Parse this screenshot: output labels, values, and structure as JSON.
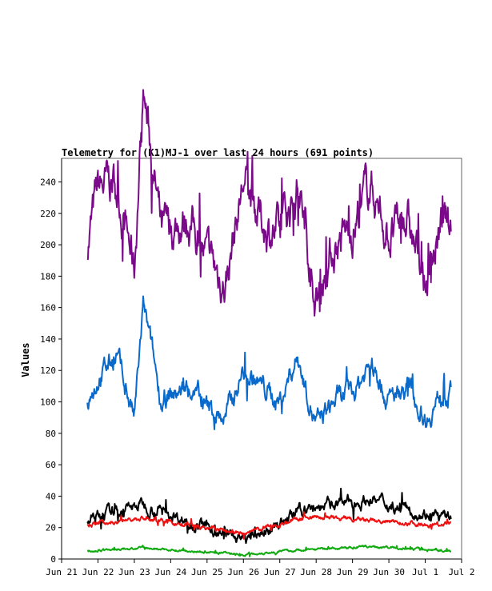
{
  "chart_data": {
    "type": "line",
    "title": "Telemetry for (K1)MJ-1 over last 24 hours (691 points)",
    "xlabel": "",
    "ylabel": "Values",
    "xlim": [
      "Jun 21",
      "Jul 2"
    ],
    "ylim": [
      0,
      255
    ],
    "x_ticks": [
      "Jun 21",
      "Jun 22",
      "Jun 23",
      "Jun 24",
      "Jun 25",
      "Jun 26",
      "Jun 27",
      "Jun 28",
      "Jun 29",
      "Jun 30",
      "Jul 1",
      "Jul 2"
    ],
    "y_ticks": [
      0,
      20,
      40,
      60,
      80,
      100,
      120,
      140,
      160,
      180,
      200,
      220,
      240
    ],
    "grid": false,
    "legend": "none",
    "series": [
      {
        "color": "#7b0a8a",
        "baseline": 205,
        "amplitude": 22,
        "noise": 18,
        "x": [
          "Jun 21 17:00",
          "Jun 22 00:00",
          "Jun 22 12:00",
          "Jun 23 00:00",
          "Jun 23 06:00",
          "Jun 23 18:00",
          "Jun 24 12:00",
          "Jun 25 00:00",
          "Jun 25 12:00",
          "Jun 26 00:00",
          "Jun 26 12:00",
          "Jun 27 00:00",
          "Jun 27 12:00",
          "Jun 28 00:00",
          "Jun 28 12:00",
          "Jun 29 00:00",
          "Jun 29 12:00",
          "Jun 30 00:00",
          "Jun 30 12:00",
          "Jul 1 00:00",
          "Jul 1 12:00",
          "Jul 1 17:00"
        ],
        "values": [
          200,
          235,
          240,
          185,
          300,
          205,
          218,
          190,
          175,
          240,
          215,
          205,
          240,
          165,
          200,
          210,
          240,
          205,
          215,
          175,
          215,
          210
        ]
      },
      {
        "color": "#0a6acc",
        "baseline": 104,
        "amplitude": 14,
        "noise": 9,
        "x": [
          "Jun 21 17:00",
          "Jun 22 00:00",
          "Jun 22 12:00",
          "Jun 23 00:00",
          "Jun 23 06:00",
          "Jun 23 18:00",
          "Jun 24 12:00",
          "Jun 25 00:00",
          "Jun 25 12:00",
          "Jun 26 00:00",
          "Jun 26 12:00",
          "Jun 27 00:00",
          "Jun 27 12:00",
          "Jun 28 00:00",
          "Jun 28 12:00",
          "Jun 29 00:00",
          "Jun 29 12:00",
          "Jun 30 00:00",
          "Jun 30 12:00",
          "Jul 1 00:00",
          "Jul 1 12:00",
          "Jul 1 17:00"
        ],
        "values": [
          100,
          115,
          130,
          90,
          160,
          100,
          110,
          95,
          90,
          120,
          110,
          100,
          130,
          85,
          100,
          105,
          125,
          100,
          110,
          90,
          105,
          105
        ]
      },
      {
        "color": "#000000",
        "baseline": 22,
        "amplitude": 5,
        "noise": 5,
        "x": [
          "Jun 21 17:00",
          "Jun 23 06:00",
          "Jun 26 00:00",
          "Jun 27 18:00",
          "Jun 29 12:00",
          "Jul 1 17:00"
        ],
        "values": [
          25,
          35,
          12,
          32,
          38,
          25
        ]
      },
      {
        "color": "#ee1111",
        "baseline": 21,
        "amplitude": 3,
        "noise": 2,
        "x": [
          "Jun 21 17:00",
          "Jun 23 06:00",
          "Jun 26 00:00",
          "Jun 27 18:00",
          "Jun 29 12:00",
          "Jul 1 17:00"
        ],
        "values": [
          22,
          26,
          16,
          27,
          24,
          22
        ]
      },
      {
        "color": "#11aa11",
        "baseline": 4.5,
        "amplitude": 1,
        "noise": 1,
        "x": [
          "Jun 21 17:00",
          "Jun 23 06:00",
          "Jun 26 00:00",
          "Jun 27 18:00",
          "Jun 29 12:00",
          "Jul 1 17:00"
        ],
        "values": [
          5,
          7,
          3,
          6,
          8,
          5
        ]
      }
    ]
  }
}
